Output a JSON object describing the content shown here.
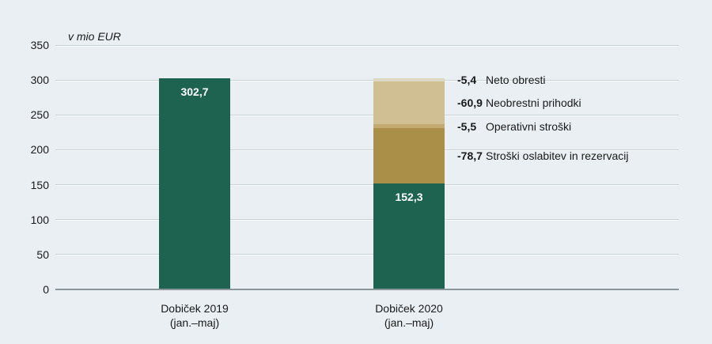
{
  "page": {
    "background": "#e9eff3",
    "text_color": "#1a1a1a",
    "accent_green": "#1d6350"
  },
  "chart_data": {
    "type": "bar",
    "subtype": "stacked-decomposition",
    "title": "",
    "ylabel": "v mio EUR",
    "ylim": [
      0,
      350
    ],
    "ytick_step": 50,
    "grid": true,
    "legend_position": "right-annotations",
    "categories": [
      {
        "line1": "Dobiček 2019",
        "line2": "(jan.–maj)"
      },
      {
        "line1": "Dobiček 2020",
        "line2": "(jan.–maj)"
      }
    ],
    "bars": [
      {
        "segments": [
          {
            "name": "Dobiček 2019",
            "value": 302.7,
            "label": "302,7",
            "color": "#1d6350",
            "label_color": "#ffffff"
          }
        ]
      },
      {
        "segments": [
          {
            "name": "Dobiček 2020",
            "value": 152.3,
            "label": "152,3",
            "color": "#1d6350",
            "label_color": "#ffffff"
          },
          {
            "name": "Stroški oslabitev in rezervacij",
            "value": 78.7,
            "color": "#a98f48"
          },
          {
            "name": "Operativni stroški",
            "value": 5.5,
            "color": "#c2aa72"
          },
          {
            "name": "Neobrestni prihodki",
            "value": 60.9,
            "color": "#d1bf94"
          },
          {
            "name": "Neto obresti",
            "value": 5.4,
            "color": "#ddd8c1"
          }
        ]
      }
    ],
    "annotations": [
      {
        "value_label": "-5,4",
        "text": "Neto obresti",
        "segment": "Neto obresti"
      },
      {
        "value_label": "-60,9",
        "text": "Neobrestni prihodki",
        "segment": "Neobrestni prihodki"
      },
      {
        "value_label": "-5,5",
        "text": "Operativni stroški",
        "segment": "Operativni stroški"
      },
      {
        "value_label": "-78,7",
        "text": "Stroški oslabitev in rezervacij",
        "segment": "Stroški oslabitev in rezervacij"
      }
    ]
  }
}
